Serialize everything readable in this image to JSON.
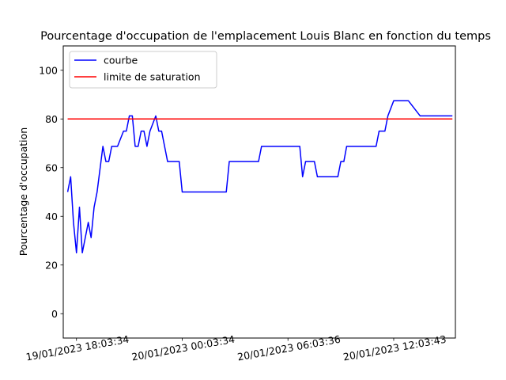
{
  "chart_data": {
    "type": "line",
    "title": "Pourcentage d'occupation de l'emplacement Louis Blanc en fonction du temps",
    "xlabel": "",
    "ylabel": "Pourcentage d'occupation",
    "ylim": [
      -10,
      110
    ],
    "yticks": [
      0,
      20,
      40,
      60,
      80,
      100
    ],
    "xticks": [
      "19/01/2023 18:03:34",
      "20/01/2023 00:03:34",
      "20/01/2023 06:03:36",
      "20/01/2023 12:03:43"
    ],
    "xtick_hours": [
      0,
      6,
      12,
      18
    ],
    "xlim_hours": [
      -0.75,
      21.5
    ],
    "grid": false,
    "legend_position": "upper-left",
    "series": [
      {
        "name": "courbe",
        "color": "#0000ff",
        "x_hours": [
          -0.5,
          -0.33,
          -0.17,
          0.0,
          0.17,
          0.33,
          0.5,
          0.67,
          0.83,
          1.0,
          1.17,
          1.5,
          1.67,
          1.83,
          2.0,
          2.17,
          2.33,
          2.67,
          2.83,
          3.0,
          3.17,
          3.33,
          3.5,
          3.67,
          3.83,
          4.0,
          4.17,
          4.5,
          4.67,
          4.83,
          5.0,
          5.17,
          5.5,
          5.83,
          6.0,
          8.5,
          8.67,
          10.33,
          10.5,
          12.67,
          12.83,
          13.0,
          13.5,
          13.67,
          14.83,
          15.0,
          15.17,
          15.33,
          17.0,
          17.17,
          17.5,
          17.67,
          18.0,
          18.17,
          18.83,
          19.5,
          21.33
        ],
        "values": [
          50,
          56.25,
          37.5,
          25,
          43.75,
          25,
          31.25,
          37.5,
          31.25,
          43.75,
          50,
          68.75,
          62.5,
          62.5,
          68.75,
          68.75,
          68.75,
          75,
          75,
          81.25,
          81.25,
          68.75,
          68.75,
          75,
          75,
          68.75,
          75,
          81.25,
          75,
          75,
          68.75,
          62.5,
          62.5,
          62.5,
          50,
          50,
          62.5,
          62.5,
          68.75,
          68.75,
          56.25,
          62.5,
          62.5,
          56.25,
          56.25,
          62.5,
          62.5,
          68.75,
          68.75,
          75,
          75,
          81.25,
          87.5,
          87.5,
          87.5,
          81.25,
          81.25
        ]
      },
      {
        "name": "limite de saturation",
        "color": "#ff0000",
        "x_hours": [
          -0.5,
          21.33
        ],
        "values": [
          80,
          80
        ]
      }
    ]
  }
}
